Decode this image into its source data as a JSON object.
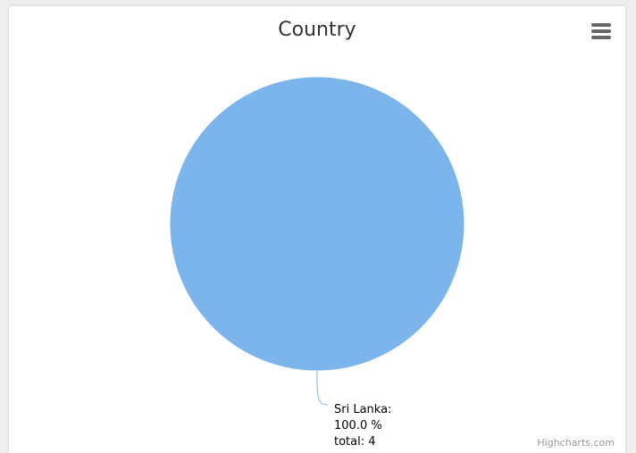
{
  "chart_data": {
    "type": "pie",
    "title": "Country",
    "categories": [
      "Sri Lanka"
    ],
    "values": [
      100.0
    ],
    "totals": [
      4
    ],
    "data_labels": [
      {
        "line1": "Sri Lanka:",
        "line2": "100.0 %",
        "line3": "total: 4"
      }
    ],
    "colors": [
      "#7cb5ec"
    ]
  },
  "menu": {
    "icon": "hamburger-menu-icon"
  },
  "credits": {
    "text": "Highcharts.com"
  }
}
